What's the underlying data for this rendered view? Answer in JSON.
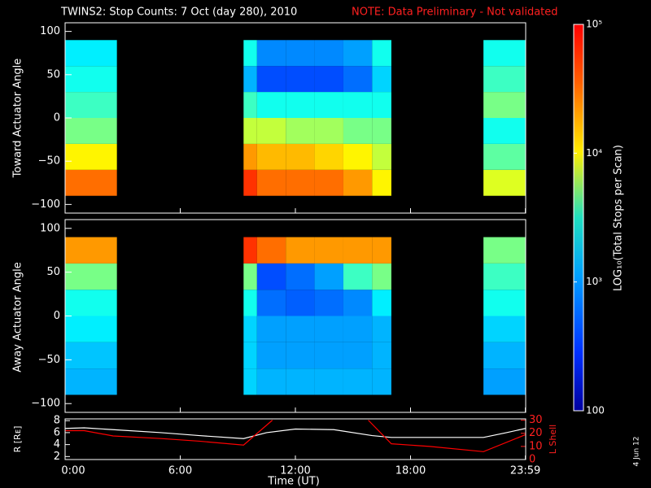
{
  "chart_data": [
    {
      "type": "heatmap",
      "title": "TWINS2: Stop Counts:  7 Oct (day 280), 2010",
      "note": "NOTE: Data Preliminary - Not validated",
      "ylabel": "Toward Actuator Angle",
      "x_edges": [
        0,
        2.7,
        9.3,
        10,
        11.5,
        13,
        14.5,
        16,
        17,
        21.8,
        24
      ],
      "y_edges": [
        -90,
        -60,
        -30,
        0,
        30,
        60,
        90
      ],
      "z": [
        [
          20000,
          null,
          30000,
          20000,
          20000,
          20000,
          15000,
          8000,
          null,
          6000
        ],
        [
          8000,
          null,
          15000,
          12000,
          12000,
          10000,
          8000,
          5000,
          null,
          2500
        ],
        [
          3000,
          null,
          5000,
          5000,
          4000,
          4000,
          3000,
          3000,
          null,
          1500
        ],
        [
          2000,
          null,
          2000,
          1500,
          1500,
          1500,
          1500,
          1500,
          null,
          3000
        ],
        [
          1500,
          null,
          800,
          400,
          400,
          400,
          500,
          1000,
          null,
          2000
        ],
        [
          1200,
          null,
          1500,
          600,
          600,
          600,
          700,
          1500,
          null,
          1500
        ]
      ],
      "xlim": [
        0,
        24
      ],
      "xticks": [
        0,
        6,
        12,
        18,
        23.983
      ],
      "ylim": [
        -110,
        110
      ],
      "yticks": [
        {
          "value": -100,
          "label": "−100"
        },
        {
          "value": -50,
          "label": "−50"
        },
        0,
        50,
        100
      ],
      "zlim": [
        100,
        100000
      ],
      "log_scale": true,
      "zticks": [
        100,
        {
          "value": 1000,
          "label": "10³"
        },
        {
          "value": 10000,
          "label": "10⁴"
        },
        {
          "value": 100000,
          "label": "10⁵"
        }
      ],
      "zlabel": "LOG₁₀(Total Stops per Scan)"
    },
    {
      "type": "heatmap",
      "ylabel": "Away Actuator Angle",
      "x_edges": [
        0,
        2.7,
        9.3,
        10,
        11.5,
        13,
        14.5,
        16,
        17,
        21.8,
        24
      ],
      "y_edges": [
        -90,
        -60,
        -30,
        0,
        30,
        60,
        90
      ],
      "z": [
        [
          800,
          null,
          1000,
          800,
          800,
          800,
          800,
          800,
          null,
          700
        ],
        [
          900,
          null,
          1000,
          700,
          700,
          700,
          700,
          800,
          null,
          800
        ],
        [
          1200,
          null,
          1000,
          700,
          700,
          700,
          700,
          800,
          null,
          1000
        ],
        [
          1500,
          null,
          1500,
          500,
          450,
          500,
          600,
          1200,
          null,
          1500
        ],
        [
          3000,
          null,
          3000,
          400,
          500,
          700,
          2000,
          3000,
          null,
          2000
        ],
        [
          15000,
          null,
          30000,
          20000,
          15000,
          15000,
          15000,
          15000,
          null,
          3000
        ]
      ],
      "xlim": [
        0,
        24
      ],
      "xticks": [
        0,
        6,
        12,
        18,
        23.983
      ],
      "ylim": [
        -110,
        110
      ],
      "yticks": [
        {
          "value": -100,
          "label": "−100"
        },
        {
          "value": -50,
          "label": "−50"
        },
        0,
        50,
        100
      ]
    },
    {
      "type": "line",
      "xlabel": "Time (UT)",
      "xlim": [
        0,
        24
      ],
      "xticks": [
        {
          "value": 0,
          "label": "0:00"
        },
        {
          "value": 6,
          "label": "6:00"
        },
        {
          "value": 12,
          "label": "12:00"
        },
        {
          "value": 18,
          "label": "18:00"
        },
        {
          "value": 23.983,
          "label": "23:59"
        }
      ],
      "ylim": [
        1.5,
        8.3
      ],
      "yticks": [
        2,
        4,
        6,
        8
      ],
      "y2lim": [
        0,
        31
      ],
      "y2ticks": [
        0,
        10,
        20,
        30
      ],
      "series": [
        {
          "name": "R [Rᴇ]",
          "color": "#ffffff",
          "x": [
            0,
            1,
            2.5,
            5,
            7,
            9.3,
            10.5,
            12,
            14,
            16,
            17,
            19,
            21.8,
            23,
            24
          ],
          "values": [
            6.7,
            6.8,
            6.5,
            6,
            5.5,
            5,
            6,
            6.6,
            6.5,
            5.5,
            5.2,
            5.2,
            5.2,
            6,
            6.7
          ]
        },
        {
          "name": "L Shell",
          "color": "#ff0000",
          "axis": "y2",
          "x": [
            0,
            1,
            2.5,
            5,
            7,
            9.3,
            10.8,
            13,
            15.8,
            17,
            19,
            21.8,
            24
          ],
          "values": [
            22,
            22,
            18,
            16,
            14,
            11,
            30,
            null,
            30,
            12,
            10,
            6,
            19
          ]
        }
      ]
    }
  ],
  "footer": "4 Jun 12"
}
